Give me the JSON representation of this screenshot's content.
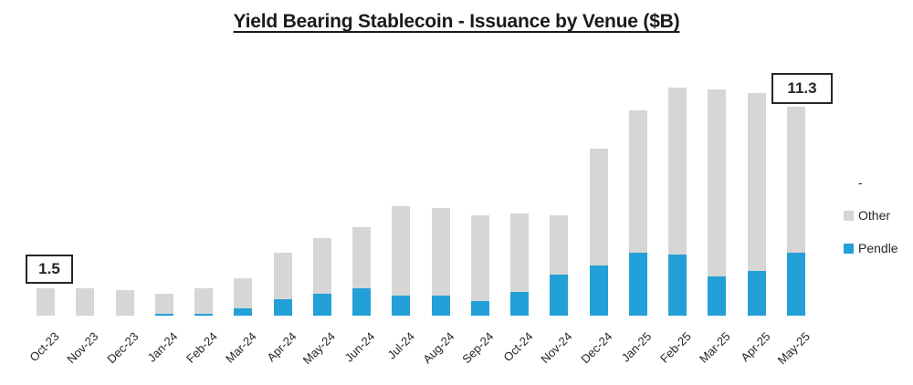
{
  "title": "Yield Bearing Stablecoin - Issuance by Venue ($B)",
  "legend": {
    "items": [
      {
        "label": "-",
        "color": "transparent"
      },
      {
        "label": "Other",
        "color": "#D6D6D6"
      },
      {
        "label": "Pendle",
        "color": "#23A0D7"
      }
    ]
  },
  "chart_data": {
    "type": "bar",
    "stacked": true,
    "title": "Yield Bearing Stablecoin - Issuance by Venue ($B)",
    "categories": [
      "Oct-23",
      "Nov-23",
      "Dec-23",
      "Jan-24",
      "Feb-24",
      "Mar-24",
      "Apr-24",
      "May-24",
      "Jun-24",
      "Jul-24",
      "Aug-24",
      "Sep-24",
      "Oct-24",
      "Nov-24",
      "Dec-24",
      "Jan-25",
      "Feb-25",
      "Mar-25",
      "Apr-25",
      "May-25"
    ],
    "series": [
      {
        "name": "Pendle",
        "color": "#23A0D7",
        "values": [
          0,
          0,
          0,
          0.1,
          0.1,
          0.4,
          0.9,
          1.2,
          1.5,
          1.1,
          1.1,
          0.8,
          1.3,
          2.2,
          2.7,
          3.4,
          3.3,
          2.1,
          2.4,
          3.4
        ]
      },
      {
        "name": "Other",
        "color": "#D6D6D6",
        "values": [
          1.5,
          1.5,
          1.4,
          1.1,
          1.4,
          1.6,
          2.5,
          3.0,
          3.3,
          4.8,
          4.7,
          4.6,
          4.2,
          3.2,
          6.3,
          7.7,
          9.0,
          10.1,
          9.6,
          7.9
        ]
      }
    ],
    "totals": [
      1.5,
      1.5,
      1.4,
      1.2,
      1.5,
      2.0,
      3.4,
      4.2,
      4.8,
      5.9,
      5.8,
      5.4,
      5.5,
      5.4,
      9.0,
      11.1,
      12.3,
      12.2,
      12.0,
      11.3
    ],
    "data_labels": [
      {
        "category": "Oct-23",
        "value": "1.5"
      },
      {
        "category": "May-25",
        "value": "11.3"
      }
    ],
    "ylim": [
      0,
      13
    ],
    "grid": false,
    "y_axis_visible": false,
    "legend_position": "right",
    "legend_entries": [
      "-",
      "Other",
      "Pendle"
    ]
  }
}
